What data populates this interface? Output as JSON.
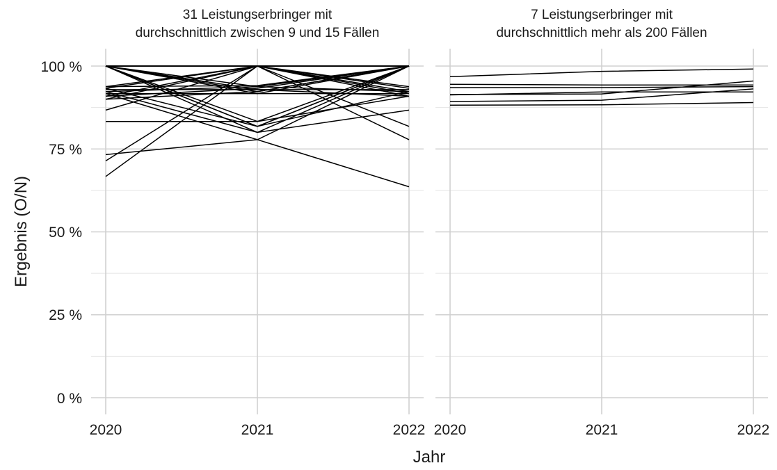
{
  "chart_data": {
    "type": "line",
    "xlabel": "Jahr",
    "ylabel": "Ergebnis (O/N)",
    "x": [
      "2020",
      "2021",
      "2022"
    ],
    "ylim": [
      0,
      1
    ],
    "yticks": [
      0,
      0.25,
      0.5,
      0.75,
      1.0
    ],
    "ytick_labels": [
      "0 %",
      "25 %",
      "50 %",
      "75 %",
      "100 %"
    ],
    "grid": true,
    "legend": "none",
    "panels": [
      {
        "title_line1": "31 Leistungserbringer mit",
        "title_line2": "durchschnittlich zwischen 9 und 15 Fällen",
        "series": [
          {
            "values": [
              1.0,
              1.0,
              1.0
            ]
          },
          {
            "values": [
              1.0,
              0.938,
              1.0
            ]
          },
          {
            "values": [
              1.0,
              0.923,
              1.0
            ]
          },
          {
            "values": [
              1.0,
              0.917,
              1.0
            ]
          },
          {
            "values": [
              1.0,
              0.833,
              1.0
            ]
          },
          {
            "values": [
              1.0,
              0.818,
              1.0
            ]
          },
          {
            "values": [
              1.0,
              0.818,
              0.923
            ]
          },
          {
            "values": [
              1.0,
              1.0,
              0.938
            ]
          },
          {
            "values": [
              1.0,
              1.0,
              0.909
            ]
          },
          {
            "values": [
              1.0,
              1.0,
              0.818
            ]
          },
          {
            "values": [
              1.0,
              1.0,
              0.778
            ]
          },
          {
            "values": [
              0.938,
              1.0,
              1.0
            ]
          },
          {
            "values": [
              0.938,
              0.941,
              1.0
            ]
          },
          {
            "values": [
              0.929,
              0.929,
              0.929
            ]
          },
          {
            "values": [
              0.923,
              0.8,
              1.0
            ]
          },
          {
            "values": [
              0.917,
              0.917,
              0.917
            ]
          },
          {
            "values": [
              0.909,
              1.0,
              1.0
            ]
          },
          {
            "values": [
              0.9,
              1.0,
              0.933
            ]
          },
          {
            "values": [
              0.9,
              0.923,
              1.0
            ]
          },
          {
            "values": [
              0.917,
              0.778,
              0.636
            ]
          },
          {
            "values": [
              0.867,
              1.0,
              0.923
            ]
          },
          {
            "values": [
              0.833,
              0.833,
              0.909
            ]
          },
          {
            "values": [
              0.733,
              0.778,
              1.0
            ]
          },
          {
            "values": [
              0.714,
              1.0,
              1.0
            ]
          },
          {
            "values": [
              0.667,
              1.0,
              1.0
            ]
          },
          {
            "values": [
              1.0,
              0.8,
              0.867
            ]
          },
          {
            "values": [
              0.923,
              0.938,
              0.923
            ]
          },
          {
            "values": [
              0.933,
              1.0,
              0.917
            ]
          },
          {
            "values": [
              0.909,
              0.933,
              1.0
            ]
          },
          {
            "values": [
              1.0,
              0.929,
              0.909
            ]
          },
          {
            "values": [
              0.933,
              0.818,
              1.0
            ]
          }
        ]
      },
      {
        "title_line1": "7 Leistungserbringer mit",
        "title_line2": "durchschnittlich mehr als 200 Fällen",
        "series": [
          {
            "values": [
              0.968,
              0.984,
              0.991
            ]
          },
          {
            "values": [
              0.945,
              0.943,
              0.943
            ]
          },
          {
            "values": [
              0.935,
              0.935,
              0.938
            ]
          },
          {
            "values": [
              0.914,
              0.916,
              0.955
            ]
          },
          {
            "values": [
              0.913,
              0.922,
              0.922
            ]
          },
          {
            "values": [
              0.893,
              0.897,
              0.931
            ]
          },
          {
            "values": [
              0.882,
              0.883,
              0.89
            ]
          }
        ]
      }
    ]
  }
}
